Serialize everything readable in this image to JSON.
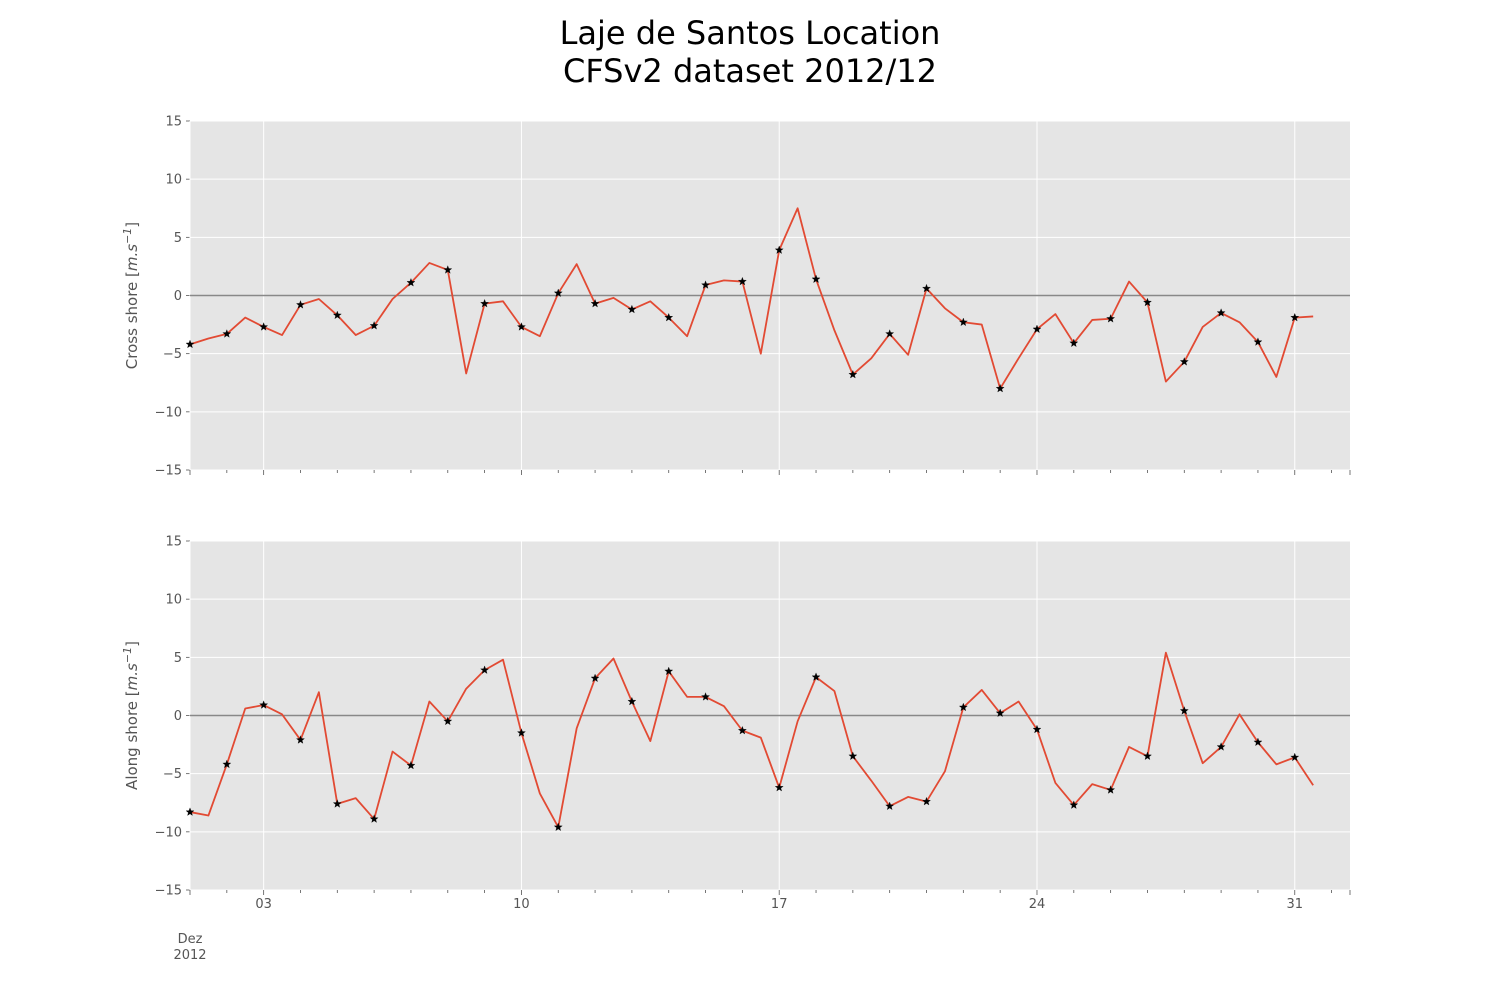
{
  "title": {
    "line1": "Laje de Santos Location",
    "line2": "CFSv2 dataset 2012/12"
  },
  "colors": {
    "panel_background": "#E5E5E5",
    "grid": "#FFFFFF",
    "series_line": "#E24A33",
    "marker": "#000000",
    "zero_line": "#888888"
  },
  "chart_data": [
    {
      "type": "line",
      "ylabel": "Cross shore [m.s^-1]",
      "ylabel_text": "Cross shore [",
      "ylabel_unit": "m.s",
      "ylabel_exp": "−1",
      "ylabel_close": "]",
      "ylim": [
        -15,
        15
      ],
      "yticks": [
        -15,
        -10,
        -5,
        0,
        5,
        10,
        15
      ],
      "ytick_labels": [
        "−15",
        "−10",
        "−5",
        "0",
        "5",
        "10",
        "15"
      ],
      "grid": true,
      "zero_line": true,
      "x_start": "2012-12-01",
      "x_step_hours": 12,
      "xlim": [
        "2012-12-01",
        "2013-01-01T12:00"
      ],
      "markers": "daily points (every other sample), star",
      "values": [
        -4.2,
        -3.7,
        -3.3,
        -1.9,
        -2.7,
        -3.4,
        -0.8,
        -0.3,
        -1.7,
        -3.4,
        -2.6,
        -0.3,
        1.1,
        2.8,
        2.2,
        -6.7,
        -0.7,
        -0.5,
        -2.7,
        -3.5,
        0.2,
        2.7,
        -0.7,
        -0.2,
        -1.2,
        -0.5,
        -1.9,
        -3.5,
        0.9,
        1.3,
        1.2,
        -5.0,
        3.9,
        7.5,
        1.4,
        -3.0,
        -6.8,
        -5.4,
        -3.3,
        -5.1,
        0.6,
        -1.1,
        -2.3,
        -2.5,
        -8.0,
        -5.4,
        -2.9,
        -1.6,
        -4.1,
        -2.1,
        -2.0,
        1.2,
        -0.6,
        -7.4,
        -5.7,
        -2.7,
        -1.5,
        -2.3,
        -4.0,
        -7.0,
        -1.9,
        -1.8
      ]
    },
    {
      "type": "line",
      "ylabel": "Along shore [m.s^-1]",
      "ylabel_text": "Along shore [",
      "ylabel_unit": "m.s",
      "ylabel_exp": "−1",
      "ylabel_close": "]",
      "ylim": [
        -15,
        15
      ],
      "yticks": [
        -15,
        -10,
        -5,
        0,
        5,
        10,
        15
      ],
      "ytick_labels": [
        "−15",
        "−10",
        "−5",
        "0",
        "5",
        "10",
        "15"
      ],
      "xticks": [
        {
          "date": "2012-12-03",
          "label": "03"
        },
        {
          "date": "2012-12-10",
          "label": "10"
        },
        {
          "date": "2012-12-17",
          "label": "17"
        },
        {
          "date": "2012-12-24",
          "label": "24"
        },
        {
          "date": "2012-12-31",
          "label": "31"
        }
      ],
      "x_start_label_line1": "Dez",
      "x_start_label_line2": "2012",
      "grid": true,
      "zero_line": true,
      "x_start": "2012-12-01",
      "x_step_hours": 12,
      "xlim": [
        "2012-12-01",
        "2013-01-01T12:00"
      ],
      "markers": "daily points (every other sample), star",
      "values": [
        -8.3,
        -8.6,
        -4.2,
        0.6,
        0.9,
        0.1,
        -2.1,
        2.0,
        -7.6,
        -7.1,
        -8.9,
        -3.1,
        -4.3,
        1.2,
        -0.5,
        2.3,
        3.9,
        4.8,
        -1.5,
        -6.7,
        -9.6,
        -1.1,
        3.2,
        4.9,
        1.2,
        -2.2,
        3.8,
        1.6,
        1.6,
        0.8,
        -1.3,
        -1.9,
        -6.2,
        -0.5,
        3.3,
        2.1,
        -3.5,
        -5.6,
        -7.8,
        -7.0,
        -7.4,
        -4.8,
        0.7,
        2.2,
        0.2,
        1.2,
        -1.2,
        -5.8,
        -7.7,
        -5.9,
        -6.4,
        -2.7,
        -3.5,
        5.4,
        0.4,
        -4.1,
        -2.7,
        0.1,
        -2.3,
        -4.2,
        -3.6,
        -6.0
      ]
    }
  ]
}
